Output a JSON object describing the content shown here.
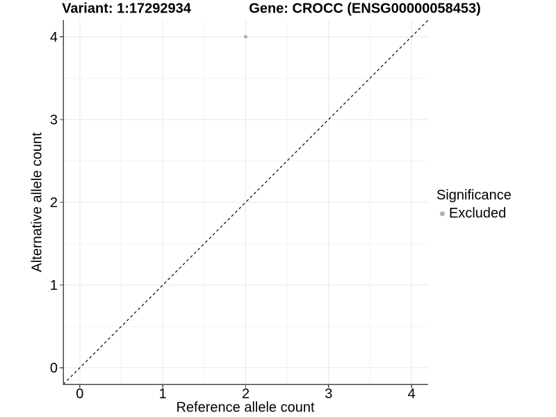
{
  "figure": {
    "title_left": "Variant: 1:17292934",
    "title_right": "Gene: CROCC (ENSG00000058453)"
  },
  "axes": {
    "x_title": "Reference allele count",
    "y_title": "Alternative allele count"
  },
  "legend": {
    "title": "Significance",
    "entries": [
      {
        "label": "Excluded",
        "marker": "circle",
        "color": "#b0b0b0"
      }
    ]
  },
  "colors": {
    "background": "#ffffff",
    "grid_major": "#e7e7e7",
    "grid_minor": "#f3f3f3",
    "axis_line": "#474747",
    "tick_mark": "#474747",
    "tick_label": "#000000",
    "reference_line": "#000000",
    "excluded_point": "#b0b0b0"
  },
  "chart_data": {
    "type": "scatter",
    "titles": [
      "Variant: 1:17292934",
      "Gene: CROCC (ENSG00000058453)"
    ],
    "xlabel": "Reference allele count",
    "ylabel": "Alternative allele count",
    "xlim": [
      -0.2,
      4.2
    ],
    "ylim": [
      -0.2,
      4.2
    ],
    "x_ticks": [
      0,
      1,
      2,
      3,
      4
    ],
    "y_ticks": [
      0,
      1,
      2,
      3,
      4
    ],
    "x_minor_ticks": [
      0.5,
      1.5,
      2.5,
      3.5
    ],
    "y_minor_ticks": [
      0.5,
      1.5,
      2.5,
      3.5
    ],
    "grid": "major+minor",
    "legend_position": "right",
    "legend_title": "Significance",
    "series": [
      {
        "name": "Excluded",
        "marker": "circle",
        "color": "#b0b0b0",
        "points": [
          {
            "x": 2,
            "y": 4
          }
        ]
      }
    ],
    "reference_line": {
      "kind": "identity",
      "slope": 1,
      "intercept": 0,
      "style": "dashed",
      "color": "#000000"
    }
  }
}
